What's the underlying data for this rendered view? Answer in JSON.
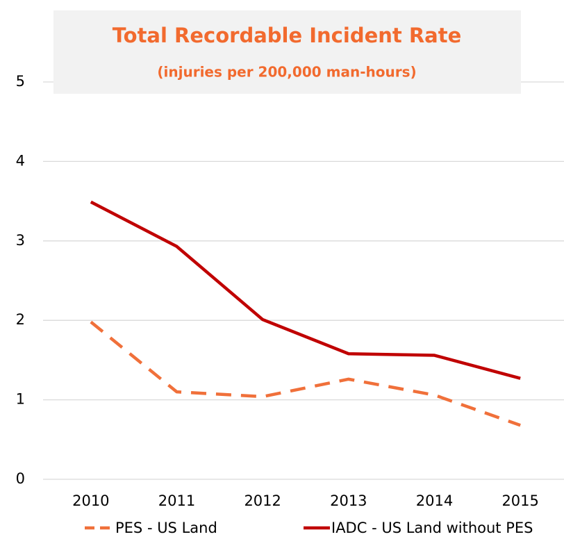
{
  "chart_data": {
    "type": "line",
    "title": "Total Recordable Incident Rate",
    "subtitle": "(injuries per 200,000 man-hours)",
    "categories": [
      "2010",
      "2011",
      "2012",
      "2013",
      "2014",
      "2015"
    ],
    "series": [
      {
        "name": "PES - US Land",
        "color": "#f0703a",
        "dashed": true,
        "values": [
          1.98,
          1.1,
          1.04,
          1.26,
          1.06,
          0.68
        ]
      },
      {
        "name": "IADC - US Land without PES",
        "color": "#c00000",
        "dashed": false,
        "values": [
          3.49,
          2.93,
          2.01,
          1.58,
          1.56,
          1.27
        ]
      }
    ],
    "ylim": [
      0,
      5
    ],
    "yticks": [
      0,
      1,
      2,
      3,
      4,
      5
    ],
    "grid": true,
    "legend": "bottom"
  }
}
